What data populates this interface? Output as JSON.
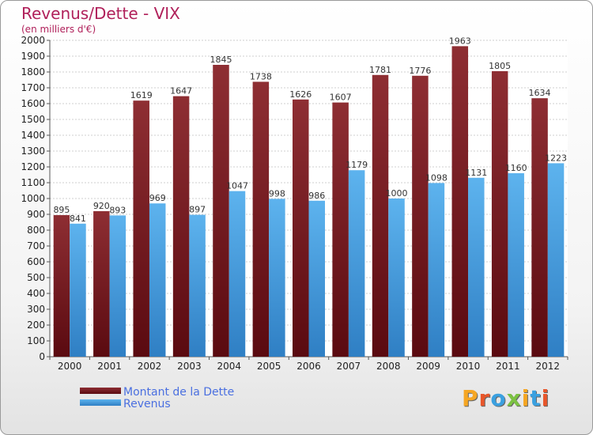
{
  "title": "Revenus/Dette - VIX",
  "subtitle": "(en milliers d'€)",
  "logo": "Proxiti",
  "colors": {
    "dette": "#7a1e24",
    "revenus": "#4aa3e6",
    "title": "#b0205a"
  },
  "chart_data": {
    "type": "bar",
    "categories": [
      "2000",
      "2001",
      "2002",
      "2003",
      "2004",
      "2005",
      "2006",
      "2007",
      "2008",
      "2009",
      "2010",
      "2011",
      "2012"
    ],
    "series": [
      {
        "name": "Montant de la Dette",
        "values": [
          895,
          920,
          1619,
          1647,
          1845,
          1738,
          1626,
          1607,
          1781,
          1776,
          1963,
          1805,
          1634
        ]
      },
      {
        "name": "Revenus",
        "values": [
          841,
          893,
          969,
          897,
          1047,
          998,
          986,
          1179,
          1000,
          1098,
          1131,
          1160,
          1223
        ]
      }
    ],
    "ylim": [
      0,
      2000
    ],
    "ytick_step": 100,
    "grid": true,
    "legend": "bottom-left"
  }
}
